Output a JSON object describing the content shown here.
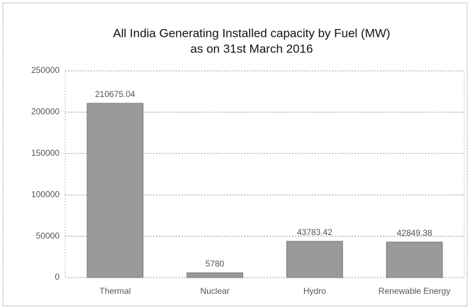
{
  "chart_data": {
    "type": "bar",
    "title": "All India Generating Installed capacity by Fuel (MW)",
    "subtitle": "as on 31st March 2016",
    "categories": [
      "Thermal",
      "Nuclear",
      "Hydro",
      "Renewable Energy"
    ],
    "values": [
      210675.04,
      5780,
      43783.42,
      42849.38
    ],
    "color": "#9a9a9a",
    "ylim": [
      0,
      250000
    ],
    "yticks": [
      0,
      50000,
      100000,
      150000,
      200000,
      250000
    ],
    "grid": true
  }
}
